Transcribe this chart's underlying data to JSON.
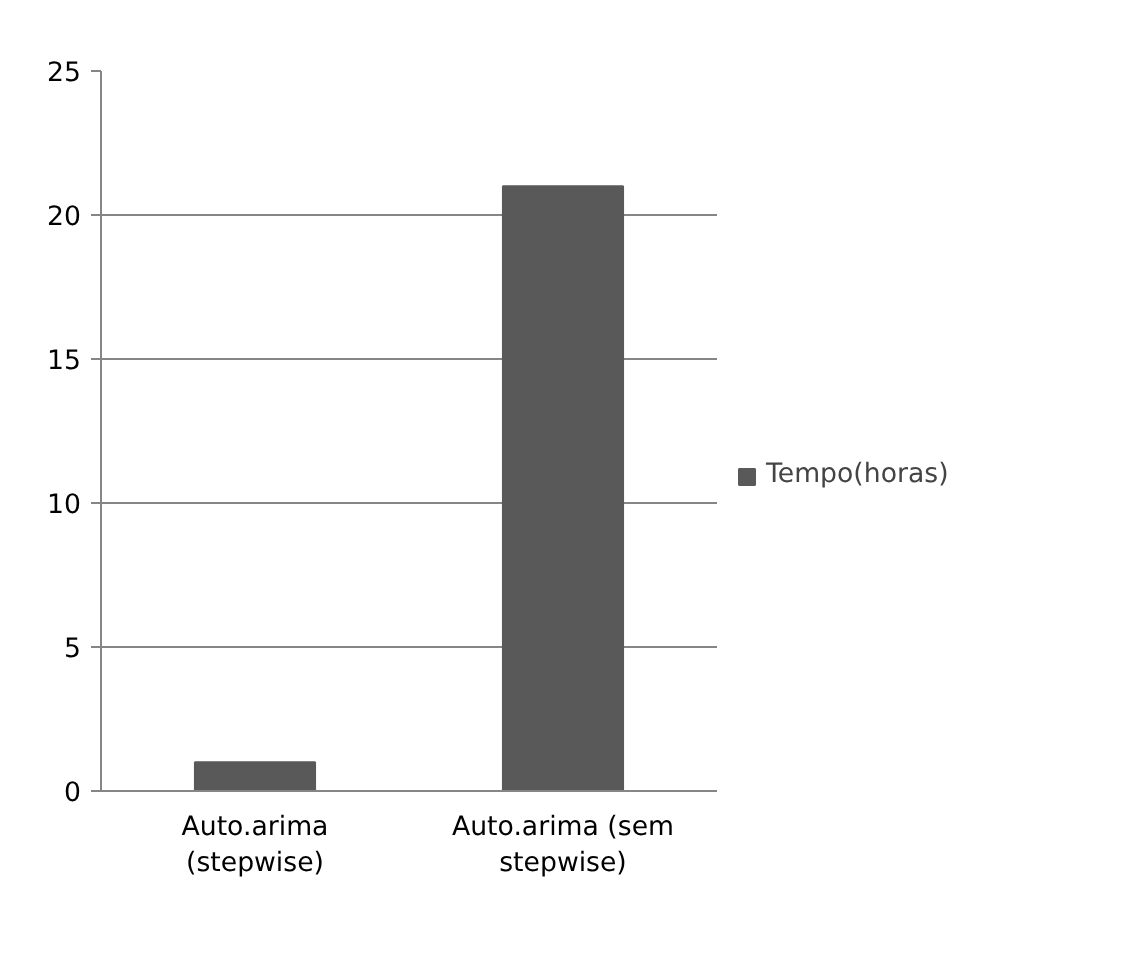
{
  "chart_data": {
    "type": "bar",
    "categories": [
      "Auto.arima\n(stepwise)",
      "Auto.arima (sem\nstepwise)"
    ],
    "series": [
      {
        "name": "Tempo(horas)",
        "color": "#595959",
        "values": [
          1,
          21
        ]
      }
    ],
    "ylim": [
      0,
      25
    ],
    "yticks": [
      0,
      5,
      10,
      15,
      20,
      25
    ],
    "grid": "y",
    "legend": "right"
  }
}
